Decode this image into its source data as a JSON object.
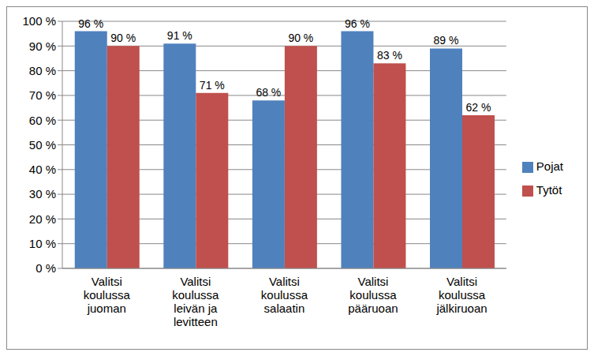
{
  "chart_data": {
    "type": "bar",
    "categories": [
      "Valitsi\nkoulussa\njuoman",
      "Valitsi\nkoulussa\nleivän ja\nlevitteen",
      "Valitsi\nkoulussa\nsalaatin",
      "Valitsi\nkoulussa\npääruoan",
      "Valitsi\nkoulussa\njälkiruoan"
    ],
    "series": [
      {
        "name": "Pojat",
        "color": "#4f81bd",
        "values": [
          96,
          91,
          68,
          96,
          89
        ],
        "value_labels": [
          "96 %",
          "91 %",
          "68 %",
          "96 %",
          "89 %"
        ]
      },
      {
        "name": "Tytöt",
        "color": "#c0504d",
        "values": [
          90,
          71,
          90,
          83,
          62
        ],
        "value_labels": [
          "90 %",
          "71 %",
          "90 %",
          "83 %",
          "62 %"
        ]
      }
    ],
    "ylim": [
      0,
      100
    ],
    "yticks": [
      {
        "value": 0,
        "label": "0 %"
      },
      {
        "value": 10,
        "label": "10 %"
      },
      {
        "value": 20,
        "label": "20 %"
      },
      {
        "value": 30,
        "label": "30 %"
      },
      {
        "value": 40,
        "label": "40 %"
      },
      {
        "value": 50,
        "label": "50 %"
      },
      {
        "value": 60,
        "label": "60 %"
      },
      {
        "value": 70,
        "label": "70 %"
      },
      {
        "value": 80,
        "label": "80 %"
      },
      {
        "value": 90,
        "label": "90 %"
      },
      {
        "value": 100,
        "label": "100 %"
      }
    ],
    "grid": true,
    "legend": "right",
    "data_labels": true
  }
}
